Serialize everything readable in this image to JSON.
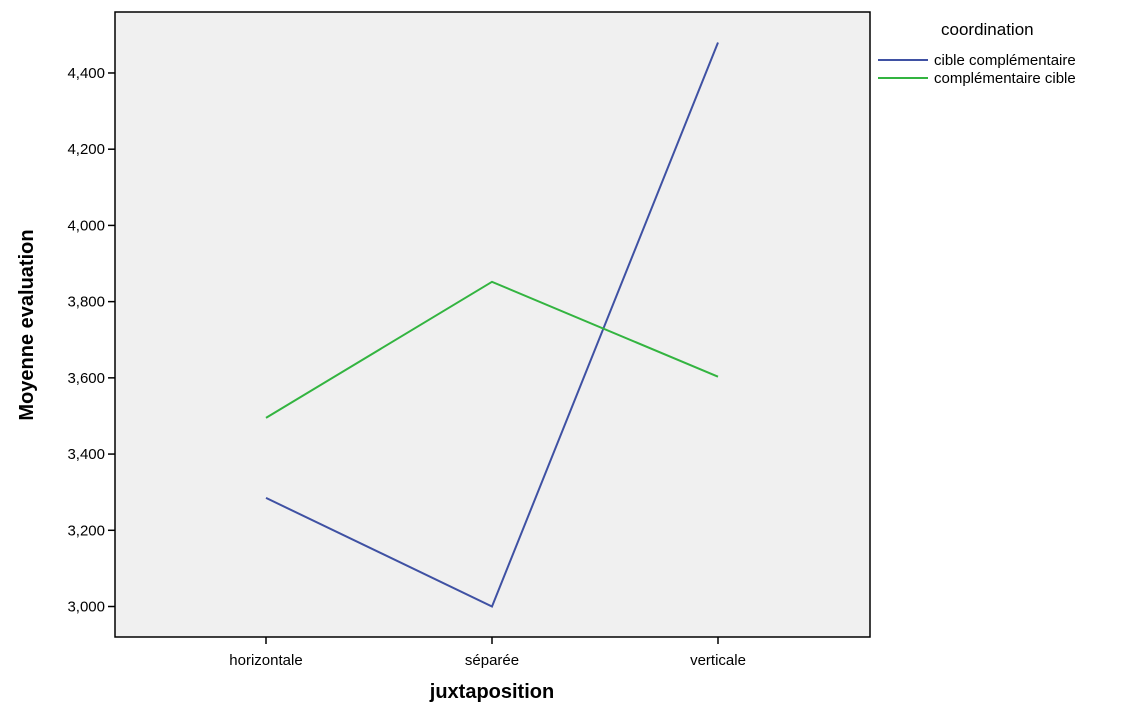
{
  "chart_data": {
    "type": "line",
    "xlabel": "juxtaposition",
    "ylabel": "Moyenne evaluation",
    "categories": [
      "horizontale",
      "séparée",
      "verticale"
    ],
    "ylim": [
      2.92,
      4.56
    ],
    "yticks": [
      3.0,
      3.2,
      3.4,
      3.6,
      3.8,
      4.0,
      4.2,
      4.4
    ],
    "ytick_labels": [
      "3,000",
      "3,200",
      "3,400",
      "3,600",
      "3,800",
      "4,000",
      "4,200",
      "4,400"
    ],
    "grid": false,
    "legend": {
      "title": "coordination",
      "placement": "top-right outside plot"
    },
    "plot_background": "#f0f0f0",
    "series": [
      {
        "name": "cible complémentaire",
        "color": "#3f51a3",
        "values": [
          3.285,
          3.0,
          4.48
        ]
      },
      {
        "name": "complémentaire cible",
        "color": "#33b440",
        "values": [
          3.495,
          3.852,
          3.603
        ]
      }
    ]
  }
}
